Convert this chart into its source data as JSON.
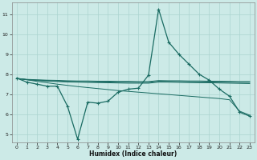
{
  "xlabel": "Humidex (Indice chaleur)",
  "bg_color": "#cceae7",
  "line_color": "#1a6b62",
  "grid_color": "#aad4d0",
  "xlim": [
    -0.5,
    23.5
  ],
  "ylim": [
    4.6,
    11.6
  ],
  "xticks": [
    0,
    1,
    2,
    3,
    4,
    5,
    6,
    7,
    8,
    9,
    10,
    11,
    12,
    13,
    14,
    15,
    16,
    17,
    18,
    19,
    20,
    21,
    22,
    23
  ],
  "yticks": [
    5,
    6,
    7,
    8,
    9,
    10,
    11
  ],
  "series_main": {
    "x": [
      0,
      1,
      2,
      3,
      4,
      5,
      6,
      7,
      8,
      9,
      10,
      11,
      12,
      13,
      14,
      15,
      16,
      17,
      18,
      19,
      20,
      21,
      22,
      23
    ],
    "y": [
      7.8,
      7.6,
      7.5,
      7.4,
      7.4,
      6.4,
      4.75,
      6.6,
      6.55,
      6.65,
      7.1,
      7.25,
      7.3,
      7.95,
      11.25,
      9.6,
      9.0,
      8.5,
      8.0,
      7.7,
      7.25,
      6.9,
      6.1,
      5.9
    ]
  },
  "series_flat1": {
    "x": [
      0,
      1,
      2,
      3,
      4,
      5,
      6,
      7,
      8,
      9,
      10,
      11,
      12,
      13,
      14,
      15,
      16,
      17,
      18,
      19,
      20,
      21,
      22,
      23
    ],
    "y": [
      7.78,
      7.72,
      7.68,
      7.65,
      7.63,
      7.61,
      7.6,
      7.59,
      7.58,
      7.57,
      7.56,
      7.55,
      7.55,
      7.55,
      7.6,
      7.6,
      7.59,
      7.58,
      7.57,
      7.57,
      7.56,
      7.55,
      7.54,
      7.53
    ]
  },
  "series_flat2": {
    "x": [
      0,
      1,
      2,
      3,
      4,
      5,
      6,
      7,
      8,
      9,
      10,
      11,
      12,
      13,
      14,
      15,
      16,
      17,
      18,
      19,
      20,
      21,
      22,
      23
    ],
    "y": [
      7.78,
      7.73,
      7.7,
      7.68,
      7.66,
      7.64,
      7.63,
      7.62,
      7.61,
      7.61,
      7.6,
      7.6,
      7.59,
      7.59,
      7.65,
      7.64,
      7.63,
      7.62,
      7.62,
      7.61,
      7.6,
      7.6,
      7.59,
      7.59
    ]
  },
  "series_flat3": {
    "x": [
      0,
      1,
      2,
      3,
      4,
      5,
      6,
      7,
      8,
      9,
      10,
      11,
      12,
      13,
      14,
      15,
      16,
      17,
      18,
      19,
      20,
      21,
      22,
      23
    ],
    "y": [
      7.78,
      7.74,
      7.72,
      7.7,
      7.69,
      7.67,
      7.66,
      7.66,
      7.65,
      7.65,
      7.64,
      7.64,
      7.63,
      7.63,
      7.68,
      7.67,
      7.67,
      7.66,
      7.66,
      7.65,
      7.65,
      7.64,
      7.63,
      7.63
    ]
  },
  "series_decline": {
    "x": [
      0,
      1,
      2,
      3,
      4,
      5,
      6,
      7,
      8,
      9,
      10,
      11,
      12,
      13,
      14,
      15,
      16,
      17,
      18,
      19,
      20,
      21,
      22,
      23
    ],
    "y": [
      7.8,
      7.72,
      7.64,
      7.57,
      7.5,
      7.44,
      7.38,
      7.33,
      7.28,
      7.23,
      7.18,
      7.14,
      7.1,
      7.06,
      7.02,
      6.98,
      6.94,
      6.9,
      6.86,
      6.82,
      6.78,
      6.72,
      6.15,
      5.95
    ]
  }
}
